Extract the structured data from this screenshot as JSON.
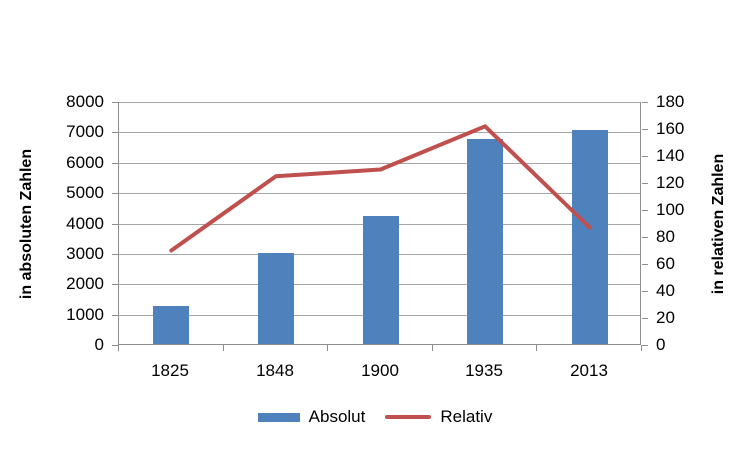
{
  "chart_data": {
    "type": "combo",
    "title": "",
    "categories": [
      "1825",
      "1848",
      "1900",
      "1935",
      "2013"
    ],
    "series": [
      {
        "name": "Absolut",
        "type": "bar",
        "axis": "left",
        "color": "#4f81bd",
        "values": [
          1250,
          3000,
          4200,
          6750,
          7050
        ]
      },
      {
        "name": "Relativ",
        "type": "line",
        "axis": "right",
        "color": "#c0504d",
        "values": [
          70,
          125,
          130,
          162,
          87
        ]
      }
    ],
    "left_axis": {
      "title": "in absoluten Zahlen",
      "min": 0,
      "max": 8000,
      "step": 1000,
      "tick_labels": [
        "0",
        "1000",
        "2000",
        "3000",
        "4000",
        "5000",
        "6000",
        "7000",
        "8000"
      ]
    },
    "right_axis": {
      "title": "in relativen Zahlen",
      "min": 0,
      "max": 180,
      "step": 20,
      "tick_labels": [
        "0",
        "20",
        "40",
        "60",
        "80",
        "100",
        "120",
        "140",
        "160",
        "180"
      ]
    },
    "legend": {
      "position": "bottom",
      "entries": [
        "Absolut",
        "Relativ"
      ]
    },
    "grid": true,
    "colors": {
      "gridline": "#a6a6a6",
      "axis_line": "#8e8e8e",
      "text": "#000000",
      "background": "#ffffff"
    }
  }
}
